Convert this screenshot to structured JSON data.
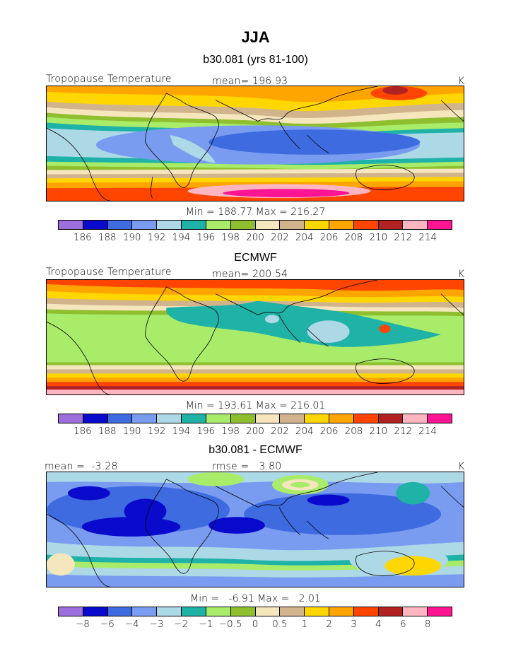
{
  "page": {
    "title": "JJA"
  },
  "chart_data": [
    {
      "type": "heatmap",
      "subtitle": "b30.081 (yrs 81-100)",
      "variable_label": "Tropopause Temperature",
      "stat_text": "mean= 196.93",
      "units": "K",
      "min_max_text": "Min = 188.77 Max = 216.27",
      "min": 188.77,
      "max": 216.27,
      "mean": 196.93,
      "colorbar_labels": [
        "186",
        "188",
        "190",
        "192",
        "194",
        "196",
        "198",
        "200",
        "202",
        "204",
        "206",
        "208",
        "210",
        "212",
        "214"
      ],
      "colorbar_colors": [
        "#9c6fdc",
        "#0a0acc",
        "#3e6be0",
        "#7a9cf0",
        "#add8e6",
        "#1fb2a6",
        "#a8ec6a",
        "#8fbf2f",
        "#f5e6be",
        "#d2b48c",
        "#ffd700",
        "#ffa500",
        "#ff4500",
        "#b22222",
        "#ffb6c1",
        "#ff1493"
      ]
    },
    {
      "type": "heatmap",
      "subtitle": "ECMWF",
      "variable_label": "Tropopause Temperature",
      "stat_text": "mean= 200.54",
      "units": "K",
      "min_max_text": "Min = 193.61 Max = 216.01",
      "min": 193.61,
      "max": 216.01,
      "mean": 200.54,
      "colorbar_labels": [
        "186",
        "188",
        "190",
        "192",
        "194",
        "196",
        "198",
        "200",
        "202",
        "204",
        "206",
        "208",
        "210",
        "212",
        "214"
      ],
      "colorbar_colors": [
        "#9c6fdc",
        "#0a0acc",
        "#3e6be0",
        "#7a9cf0",
        "#add8e6",
        "#1fb2a6",
        "#a8ec6a",
        "#8fbf2f",
        "#f5e6be",
        "#d2b48c",
        "#ffd700",
        "#ffa500",
        "#ff4500",
        "#b22222",
        "#ffb6c1",
        "#ff1493"
      ]
    },
    {
      "type": "heatmap",
      "subtitle": "b30.081 - ECMWF",
      "variable_label": "mean =  -3.28",
      "stat_text": "rmse =   3.80",
      "units": "K",
      "min_max_text": "Min =   -6.91 Max =   2.01",
      "min": -6.91,
      "max": 2.01,
      "mean": -3.28,
      "rmse": 3.8,
      "colorbar_labels": [
        "−8",
        "−6",
        "−4",
        "−3",
        "−2",
        "−1",
        "−0.5",
        "0",
        "0.5",
        "1",
        "2",
        "3",
        "4",
        "6",
        "8"
      ],
      "colorbar_colors": [
        "#9c6fdc",
        "#0a0acc",
        "#3e6be0",
        "#7a9cf0",
        "#add8e6",
        "#1fb2a6",
        "#a8ec6a",
        "#8fbf2f",
        "#f5e6be",
        "#d2b48c",
        "#ffd700",
        "#ffa500",
        "#ff4500",
        "#b22222",
        "#ffb6c1",
        "#ff1493"
      ]
    }
  ]
}
